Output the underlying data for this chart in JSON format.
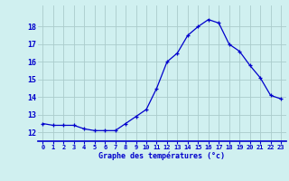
{
  "hours": [
    0,
    1,
    2,
    3,
    4,
    5,
    6,
    7,
    8,
    9,
    10,
    11,
    12,
    13,
    14,
    15,
    16,
    17,
    18,
    19,
    20,
    21,
    22,
    23
  ],
  "temps": [
    12.5,
    12.4,
    12.4,
    12.4,
    12.2,
    12.1,
    12.1,
    12.1,
    12.5,
    12.9,
    13.3,
    14.5,
    16.0,
    16.5,
    17.5,
    18.0,
    18.4,
    18.2,
    17.0,
    16.6,
    15.8,
    15.1,
    14.1,
    13.9
  ],
  "line_color": "#0000cc",
  "marker": "+",
  "bg_color": "#d0f0f0",
  "grid_color": "#aacccc",
  "xlabel": "Graphe des températures (°c)",
  "xlabel_color": "#0000cc",
  "tick_color": "#0000cc",
  "axis_color": "#0000cc",
  "ylim": [
    11.5,
    19.2
  ],
  "xlim": [
    -0.5,
    23.5
  ],
  "yticks": [
    12,
    13,
    14,
    15,
    16,
    17,
    18
  ],
  "xtick_labels": [
    "0",
    "1",
    "2",
    "3",
    "4",
    "5",
    "6",
    "7",
    "8",
    "9",
    "10",
    "11",
    "12",
    "13",
    "14",
    "15",
    "16",
    "17",
    "18",
    "19",
    "20",
    "21",
    "22",
    "23"
  ]
}
